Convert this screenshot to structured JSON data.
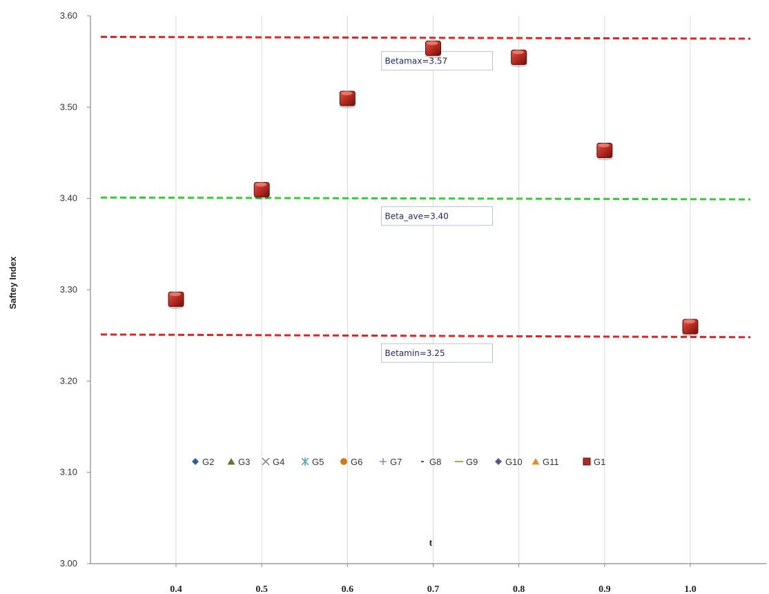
{
  "chart_data": {
    "type": "scatter",
    "title": "",
    "xlabel": "t",
    "ylabel": "Saftey Index",
    "xlim": [
      0.31,
      1.07
    ],
    "ylim": [
      3.0,
      3.6
    ],
    "x_ticks": [
      "0.4",
      "0.5",
      "0.6",
      "0.7",
      "0.8",
      "0.9",
      "1.0"
    ],
    "x_tick_values": [
      0.4,
      0.5,
      0.6,
      0.7,
      0.8,
      0.9,
      1.0
    ],
    "y_ticks": [
      "3.00",
      "3.10",
      "3.20",
      "3.30",
      "3.40",
      "3.50",
      "3.60"
    ],
    "y_tick_values": [
      3.0,
      3.1,
      3.2,
      3.3,
      3.4,
      3.5,
      3.6
    ],
    "grid": "vertical",
    "legend_position": "inside-bottom",
    "series": [
      {
        "name": "G2",
        "marker": "diamond",
        "color": "#2e5c9a",
        "x": [],
        "y": []
      },
      {
        "name": "G3",
        "marker": "triangle",
        "color": "#5a7a2a",
        "x": [],
        "y": []
      },
      {
        "name": "G4",
        "marker": "x",
        "color": "#7a7a7a",
        "x": [],
        "y": []
      },
      {
        "name": "G5",
        "marker": "star",
        "color": "#4aa3b5",
        "x": [],
        "y": []
      },
      {
        "name": "G6",
        "marker": "circle",
        "color": "#d07a1a",
        "x": [],
        "y": []
      },
      {
        "name": "G7",
        "marker": "plus",
        "color": "#8a8ab0",
        "x": [],
        "y": []
      },
      {
        "name": "G8",
        "marker": "dash",
        "color": "#3a5a8a",
        "x": [],
        "y": []
      },
      {
        "name": "G9",
        "marker": "line",
        "color": "#9ab05a",
        "x": [],
        "y": []
      },
      {
        "name": "G10",
        "marker": "diamond",
        "color": "#55558a",
        "x": [],
        "y": []
      },
      {
        "name": "G11",
        "marker": "triangle",
        "color": "#e09030",
        "x": [],
        "y": []
      },
      {
        "name": "G1",
        "marker": "square",
        "color": "#b02a20",
        "x": [
          0.4,
          0.5,
          0.6,
          0.7,
          0.8,
          0.9,
          1.0
        ],
        "y": [
          3.29,
          3.41,
          3.51,
          3.565,
          3.555,
          3.453,
          3.26
        ]
      }
    ],
    "reference_lines": [
      {
        "label": "Betamax=3.57",
        "y_start": 3.577,
        "y_end": 3.575,
        "color": "#e82020",
        "label_x": 0.7,
        "label_y": 3.57
      },
      {
        "label": "Beta_ave=3.40",
        "y_start": 3.401,
        "y_end": 3.399,
        "color": "#30d030",
        "label_x": 0.7,
        "label_y": 3.4
      },
      {
        "label": "Betamin=3.25",
        "y_start": 3.251,
        "y_end": 3.248,
        "color": "#e82020",
        "label_x": 0.7,
        "label_y": 3.25
      }
    ]
  }
}
